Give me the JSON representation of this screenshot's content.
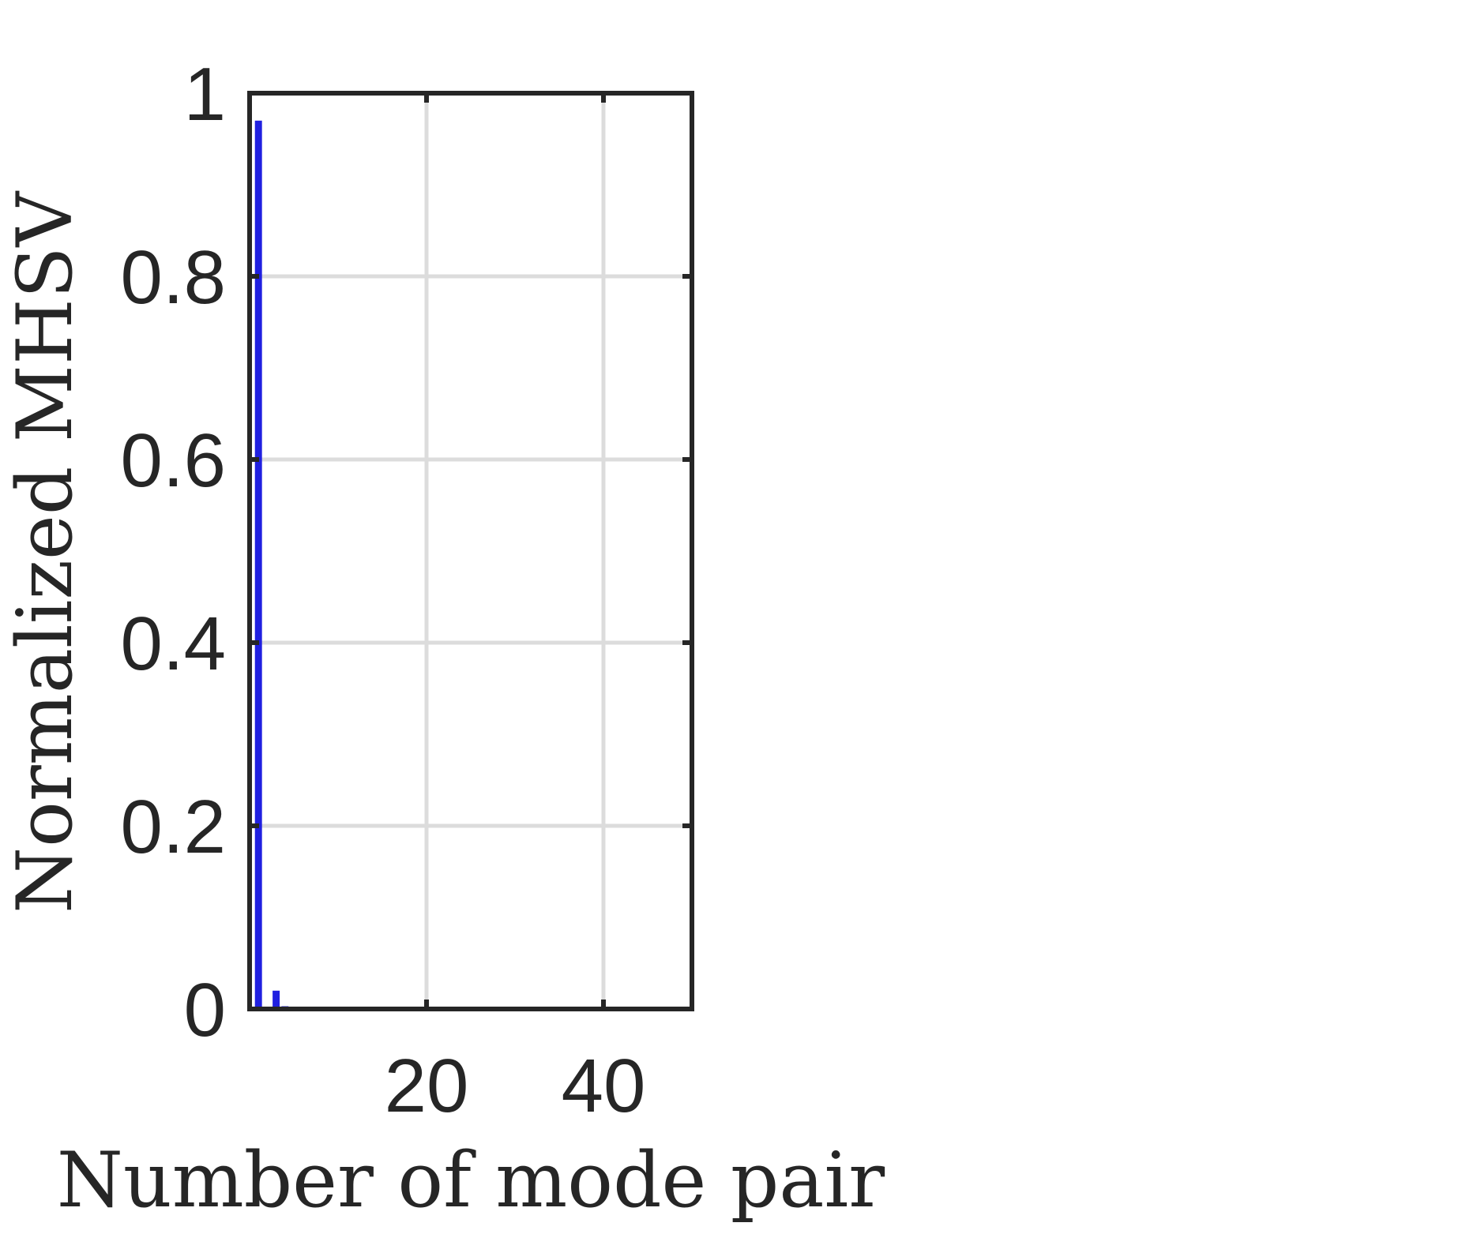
{
  "chart_data": {
    "type": "bar",
    "xlabel": "Number of mode pair",
    "ylabel": "Normalized MHSV",
    "title": "",
    "xlim": [
      0,
      50
    ],
    "ylim": [
      0,
      1
    ],
    "xticks": [
      20,
      40
    ],
    "xtick_labels": [
      "20",
      "40"
    ],
    "yticks": [
      0,
      0.2,
      0.4,
      0.6,
      0.8,
      1
    ],
    "ytick_labels": [
      "0",
      "0.2",
      "0.4",
      "0.6",
      "0.8",
      "1"
    ],
    "grid": true,
    "bar_color": "#2020e0",
    "gridline_color": "#dcdcdc",
    "axis_color": "#262626",
    "series": [
      {
        "x": [
          1,
          2,
          3,
          4,
          5,
          6,
          7,
          8
        ],
        "values": [
          0.97,
          0.0,
          0.02,
          0.003,
          0.001,
          0.0005,
          0.0003,
          0.0002
        ]
      }
    ]
  }
}
